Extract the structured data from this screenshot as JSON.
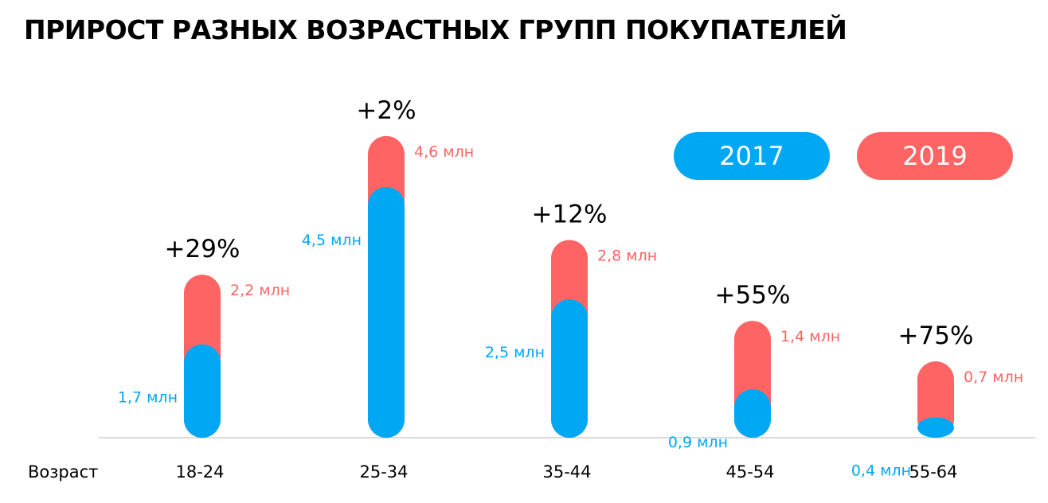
{
  "title": "ПРИРОСТ РАЗНЫХ ВОЗРАСТНЫХ ГРУПП ПОКУПАТЕЛЕЙ",
  "colors": {
    "2017": "#00a8f4",
    "2019": "#ff6464",
    "axis": "#d0d0d0",
    "text": "#000000"
  },
  "legend": [
    {
      "label": "2017",
      "color": "#00a8f4"
    },
    {
      "label": "2019",
      "color": "#ff6464"
    }
  ],
  "chart_data": {
    "type": "bar",
    "title": "ПРИРОСТ РАЗНЫХ ВОЗРАСТНЫХ ГРУПП ПОКУПАТЕЛЕЙ",
    "xlabel": "Возраст",
    "categories": [
      "18-24",
      "25-34",
      "35-44",
      "45-54",
      "55-64"
    ],
    "series": [
      {
        "name": "2017",
        "values": [
          1.7,
          4.5,
          2.5,
          0.9,
          0.4
        ],
        "labels": [
          "1,7 млн",
          "4,5 млн",
          "2,5 млн",
          "0,9 млн",
          "0,4 млн"
        ]
      },
      {
        "name": "2019",
        "values": [
          2.2,
          4.6,
          2.8,
          1.4,
          0.7
        ],
        "labels": [
          "2,2 млн",
          "4,6 млн",
          "2,8 млн",
          "1,4 млн",
          "0,7 млн"
        ]
      }
    ],
    "growth_labels": [
      "+29%",
      "+2%",
      "+12%",
      "+55%",
      "+75%"
    ],
    "unit": "млн",
    "legend_position": "top-right"
  }
}
